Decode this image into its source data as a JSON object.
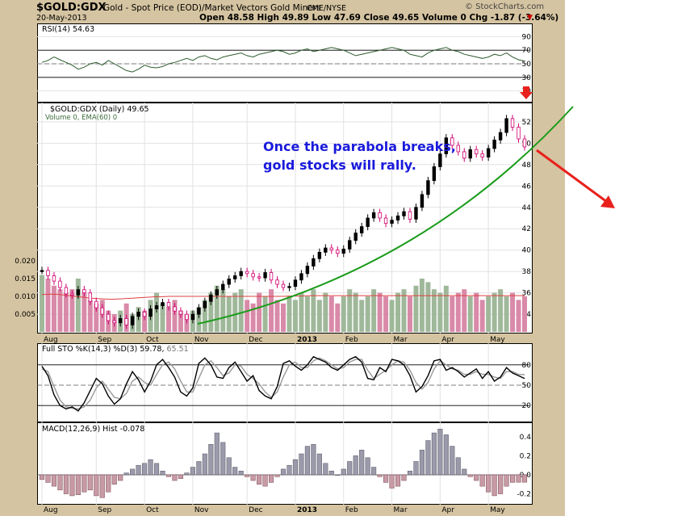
{
  "header": {
    "symbol": "$GOLD:GDX",
    "description": "Gold - Spot Price (EOD)/Market Vectors Gold Miners",
    "exchange": "CME/NYSE",
    "date": "20-May-2013",
    "ohlc": "Open 48.58  High 49.89  Low 47.69  Close 49.65  Volume 0  Chg -1.87 (-3.64%)",
    "chg_arrow": "▼",
    "watermark": "© StockCharts.com"
  },
  "colors": {
    "up": "#000000",
    "down": "#d0006f",
    "vol_up": "#9fb89a",
    "vol_down": "#d98aa8",
    "trend": "#1a9c1a",
    "arrow": "#e8211d",
    "annotation": "#1a1adc",
    "ema": "#e04040"
  },
  "annotation": {
    "line1": "Once the parabola breaks,",
    "line2": "gold stocks will rally."
  },
  "chart_data": [
    {
      "type": "line",
      "name": "RSI",
      "title": "RSI(14) 54.63",
      "yticks": [
        "90",
        "70",
        "50",
        "30",
        "10"
      ],
      "ylim": [
        0,
        100
      ],
      "levels": [
        70,
        30
      ],
      "values": [
        52,
        55,
        60,
        56,
        52,
        48,
        42,
        45,
        50,
        52,
        48,
        55,
        50,
        45,
        40,
        38,
        42,
        48,
        45,
        44,
        46,
        50,
        52,
        55,
        58,
        55,
        60,
        62,
        58,
        56,
        60,
        62,
        64,
        66,
        62,
        60,
        64,
        66,
        68,
        70,
        68,
        64,
        66,
        70,
        72,
        68,
        70,
        72,
        74,
        72,
        70,
        66,
        62,
        64,
        66,
        68,
        70,
        72,
        74,
        72,
        70,
        64,
        62,
        60,
        66,
        70,
        72,
        74,
        70,
        68,
        64,
        62,
        60,
        58,
        60,
        64,
        62,
        66,
        60,
        56,
        54
      ]
    },
    {
      "type": "line",
      "name": "Price",
      "title": "$GOLD:GDX (Daily) 49.65",
      "volume_label": "Volume 0, EMA(60) 0",
      "x_labels": [
        "Aug",
        "Sep",
        "Oct",
        "Nov",
        "Dec",
        "2013",
        "Feb",
        "Mar",
        "Apr",
        "May"
      ],
      "yticks": [
        "52",
        "50",
        "48",
        "46",
        "44",
        "42",
        "40",
        "38",
        "36",
        "34"
      ],
      "volume_ticks": [
        "0.020",
        "0.015",
        "0.010",
        "0.005"
      ],
      "ylim": [
        32.5,
        53.5
      ],
      "values": [
        38.1,
        37.6,
        37.1,
        36.5,
        35.9,
        35.8,
        36.3,
        36.0,
        35.2,
        34.6,
        34.0,
        33.4,
        33.2,
        33.6,
        33.0,
        33.8,
        34.2,
        33.8,
        34.5,
        34.8,
        35.1,
        34.7,
        34.3,
        34.0,
        33.5,
        34.0,
        34.6,
        35.2,
        35.8,
        36.3,
        36.8,
        37.3,
        37.6,
        38.0,
        37.8,
        37.5,
        37.4,
        37.9,
        37.2,
        36.8,
        36.5,
        36.6,
        37.2,
        37.8,
        38.5,
        39.2,
        39.8,
        40.2,
        40.0,
        39.7,
        40.1,
        40.9,
        41.6,
        42.2,
        43.0,
        43.5,
        43.0,
        42.5,
        42.8,
        43.2,
        43.6,
        42.9,
        44.0,
        45.2,
        46.5,
        47.8,
        49.0,
        50.5,
        49.8,
        49.2,
        48.6,
        49.4,
        49.0,
        48.7,
        49.5,
        50.3,
        51.0,
        52.3,
        51.5,
        50.4,
        49.65
      ],
      "volume": [
        0.016,
        0.015,
        0.013,
        0.012,
        0.011,
        0.012,
        0.015,
        0.011,
        0.009,
        0.008,
        0.009,
        0.006,
        0.005,
        0.006,
        0.008,
        0.005,
        0.007,
        0.006,
        0.009,
        0.011,
        0.008,
        0.007,
        0.009,
        0.006,
        0.005,
        0.006,
        0.007,
        0.009,
        0.011,
        0.013,
        0.012,
        0.01,
        0.011,
        0.012,
        0.009,
        0.008,
        0.011,
        0.01,
        0.012,
        0.009,
        0.008,
        0.01,
        0.009,
        0.011,
        0.01,
        0.012,
        0.009,
        0.011,
        0.01,
        0.008,
        0.01,
        0.012,
        0.011,
        0.009,
        0.01,
        0.012,
        0.011,
        0.01,
        0.009,
        0.011,
        0.012,
        0.01,
        0.013,
        0.015,
        0.014,
        0.012,
        0.011,
        0.013,
        0.01,
        0.011,
        0.012,
        0.01,
        0.011,
        0.009,
        0.01,
        0.011,
        0.012,
        0.01,
        0.011,
        0.009,
        0.01
      ],
      "ema": [
        0.0105,
        0.0106,
        0.0106,
        0.0105,
        0.0103,
        0.0101,
        0.0099,
        0.0097,
        0.0095,
        0.0094,
        0.0093,
        0.0092,
        0.0092,
        0.0093,
        0.0094,
        0.0095,
        0.0096,
        0.0097,
        0.0098,
        0.0099,
        0.0099,
        0.01,
        0.01,
        0.01,
        0.01,
        0.01,
        0.01,
        0.01,
        0.01,
        0.01,
        0.01,
        0.01,
        0.01,
        0.01,
        0.01,
        0.01,
        0.01,
        0.01,
        0.01,
        0.01,
        0.01,
        0.0101,
        0.0101,
        0.0101,
        0.0102,
        0.0102,
        0.0102,
        0.0102,
        0.0102,
        0.0102,
        0.0102,
        0.0102,
        0.0102,
        0.0102,
        0.0102,
        0.0102,
        0.0102,
        0.0102,
        0.0102,
        0.0102,
        0.0102,
        0.0102,
        0.0102,
        0.0102,
        0.0102,
        0.0102,
        0.0102,
        0.0102,
        0.0102,
        0.0102,
        0.0102,
        0.0102,
        0.0102,
        0.0102,
        0.0102,
        0.0102,
        0.0102,
        0.0102,
        0.0102,
        0.0102,
        0.0102
      ]
    },
    {
      "type": "line",
      "name": "Stochastic",
      "title": "Full STO %K(14,3) %D(3) 59.78,",
      "d_value": "65.51",
      "yticks": [
        "80",
        "50",
        "20"
      ],
      "ylim": [
        0,
        100
      ],
      "levels": [
        80,
        50,
        20
      ],
      "k": [
        78,
        64,
        36,
        20,
        15,
        18,
        12,
        24,
        42,
        60,
        52,
        34,
        22,
        30,
        52,
        70,
        58,
        40,
        56,
        80,
        88,
        76,
        62,
        40,
        34,
        46,
        82,
        90,
        80,
        62,
        60,
        76,
        84,
        70,
        56,
        64,
        42,
        34,
        30,
        48,
        82,
        86,
        78,
        72,
        80,
        92,
        88,
        84,
        76,
        72,
        80,
        88,
        92,
        84,
        60,
        58,
        76,
        70,
        88,
        86,
        80,
        64,
        40,
        48,
        64,
        86,
        88,
        72,
        76,
        70,
        62,
        68,
        74,
        60,
        70,
        56,
        62,
        76,
        68,
        64,
        59.78
      ],
      "d": [
        74,
        70,
        48,
        28,
        18,
        16,
        15,
        18,
        28,
        46,
        56,
        44,
        32,
        30,
        38,
        56,
        62,
        54,
        50,
        66,
        80,
        84,
        74,
        56,
        40,
        40,
        60,
        80,
        86,
        76,
        64,
        68,
        80,
        78,
        66,
        60,
        52,
        40,
        32,
        40,
        62,
        80,
        84,
        76,
        76,
        86,
        90,
        86,
        80,
        74,
        76,
        84,
        88,
        88,
        72,
        60,
        66,
        72,
        80,
        86,
        84,
        72,
        54,
        44,
        54,
        74,
        86,
        80,
        74,
        72,
        66,
        66,
        70,
        66,
        66,
        62,
        60,
        70,
        70,
        66,
        65.51
      ]
    },
    {
      "type": "bar",
      "name": "MACD",
      "title": "MACD(12,26,9) Hist -0.078",
      "yticks": [
        "0.4",
        "0.2",
        "0.0",
        "-0.2"
      ],
      "ylim": [
        -0.28,
        0.5
      ],
      "x_labels": [
        "Aug",
        "Sep",
        "Oct",
        "Nov",
        "Dec",
        "2013",
        "Feb",
        "Mar",
        "Apr",
        "May"
      ],
      "values": [
        -0.05,
        -0.08,
        -0.12,
        -0.16,
        -0.2,
        -0.22,
        -0.21,
        -0.18,
        -0.16,
        -0.22,
        -0.24,
        -0.18,
        -0.1,
        -0.06,
        0.02,
        0.06,
        0.1,
        0.12,
        0.16,
        0.12,
        0.04,
        -0.02,
        -0.06,
        -0.04,
        0.02,
        0.08,
        0.14,
        0.22,
        0.32,
        0.44,
        0.34,
        0.18,
        0.08,
        0.04,
        -0.02,
        -0.06,
        -0.1,
        -0.12,
        -0.08,
        -0.02,
        0.06,
        0.1,
        0.16,
        0.22,
        0.3,
        0.32,
        0.22,
        0.12,
        0.04,
        0.0,
        0.06,
        0.14,
        0.2,
        0.26,
        0.18,
        0.08,
        -0.02,
        -0.08,
        -0.14,
        -0.12,
        -0.06,
        0.04,
        0.14,
        0.26,
        0.36,
        0.44,
        0.48,
        0.42,
        0.3,
        0.18,
        0.06,
        -0.02,
        -0.06,
        -0.12,
        -0.18,
        -0.22,
        -0.2,
        -0.12,
        -0.08,
        -0.078,
        -0.078
      ]
    }
  ]
}
